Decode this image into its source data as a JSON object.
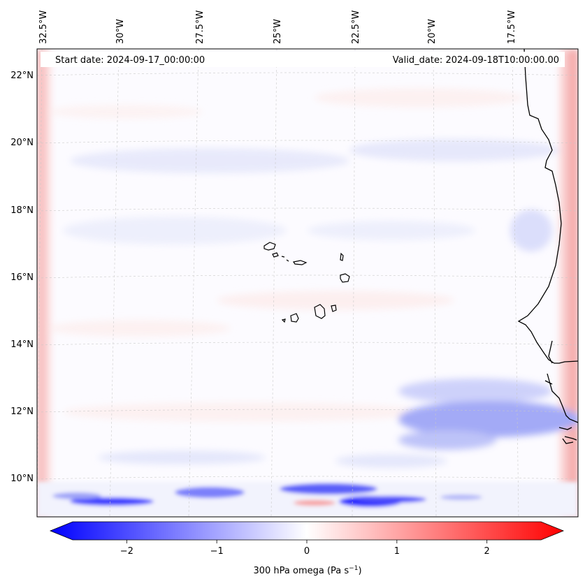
{
  "header": {
    "start_date": "Start date: 2024-09-17_00:00:00",
    "valid_date": "Valid_date: 2024-09-18T10:00:00.00"
  },
  "map": {
    "longitude_labels": [
      "32.5°W",
      "30°W",
      "27.5°W",
      "25°W",
      "22.5°W",
      "20°W",
      "17.5°W"
    ],
    "latitude_labels": [
      "22°N",
      "20°N",
      "18°N",
      "16°N",
      "14°N",
      "12°N",
      "10°N"
    ],
    "region": "Cape Verde islands and West African coast"
  },
  "colorbar": {
    "label_prefix": "300 hPa omega (Pa s",
    "label_exp": "−1",
    "label_suffix": ")",
    "ticks": [
      "−2",
      "−1",
      "0",
      "1",
      "2"
    ],
    "tick_values": [
      -2,
      -1,
      0,
      1,
      2
    ],
    "range": [
      -2.6,
      2.6
    ],
    "colormap": "bwr",
    "low_color": "#0000ff",
    "mid_color": "#ffffff",
    "high_color": "#ff0000"
  }
}
